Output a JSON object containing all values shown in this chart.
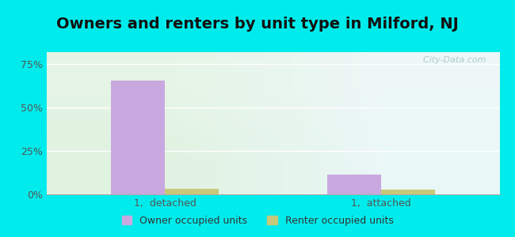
{
  "title": "Owners and renters by unit type in Milford, NJ",
  "categories": [
    "1,  detached",
    "1,  attached"
  ],
  "owner_values": [
    0.655,
    0.115
  ],
  "renter_values": [
    0.032,
    0.028
  ],
  "owner_color": "#c9a8e0",
  "renter_color": "#c8c87a",
  "bg_outer": "#00ecec",
  "bg_inner": "#e8f5e8",
  "yticks": [
    0,
    0.25,
    0.5,
    0.75
  ],
  "ytick_labels": [
    "0%",
    "25%",
    "50%",
    "75%"
  ],
  "ylim": [
    0,
    0.82
  ],
  "legend_owner": "Owner occupied units",
  "legend_renter": "Renter occupied units",
  "title_fontsize": 14,
  "tick_fontsize": 9,
  "legend_fontsize": 9,
  "bar_width": 0.25,
  "watermark_color": "#b0ccd0"
}
